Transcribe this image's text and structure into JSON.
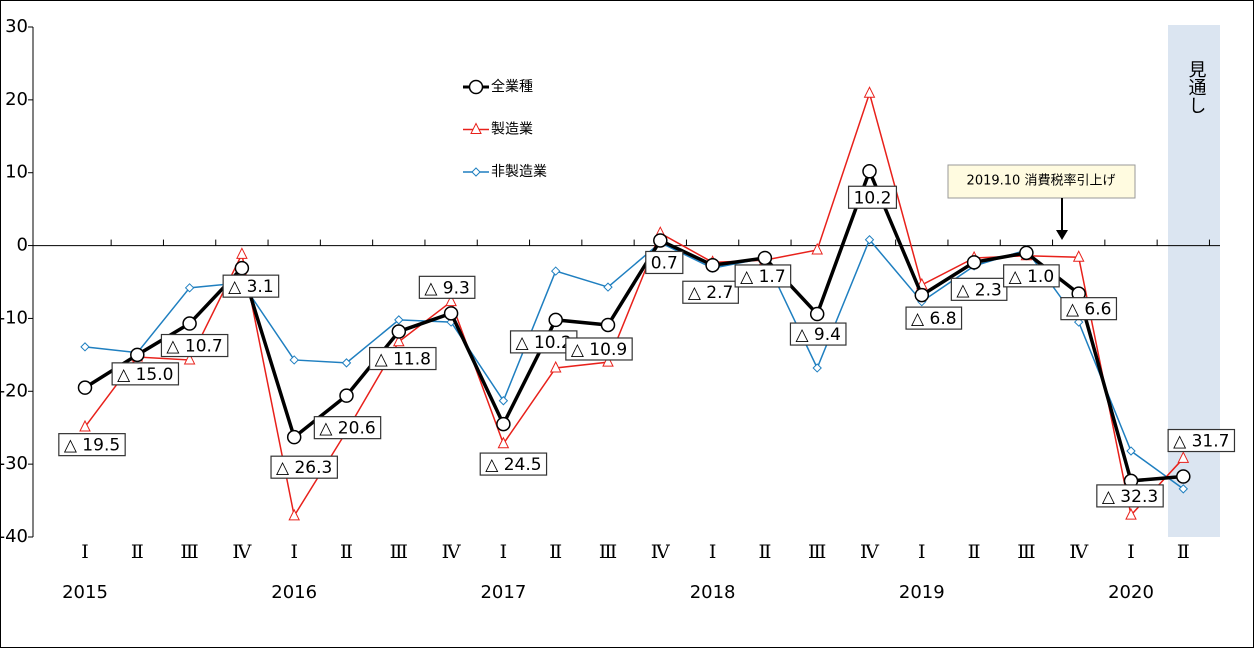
{
  "chart_data": {
    "type": "line",
    "categories": [
      "Ⅰ",
      "Ⅱ",
      "Ⅲ",
      "Ⅳ",
      "Ⅰ",
      "Ⅱ",
      "Ⅲ",
      "Ⅳ",
      "Ⅰ",
      "Ⅱ",
      "Ⅲ",
      "Ⅳ",
      "Ⅰ",
      "Ⅱ",
      "Ⅲ",
      "Ⅳ",
      "Ⅰ",
      "Ⅱ",
      "Ⅲ",
      "Ⅳ",
      "Ⅰ",
      "Ⅱ"
    ],
    "years": [
      "2015",
      null,
      null,
      null,
      "2016",
      null,
      null,
      null,
      "2017",
      null,
      null,
      null,
      "2018",
      null,
      null,
      null,
      "2019",
      null,
      null,
      null,
      "2020",
      null
    ],
    "series": [
      {
        "name": "全業種",
        "color": "#000000",
        "marker": "circle",
        "values": [
          -19.5,
          -15.0,
          -10.7,
          -3.1,
          -26.3,
          -20.6,
          -11.8,
          -9.3,
          -24.5,
          -10.2,
          -10.9,
          0.7,
          -2.7,
          -1.7,
          -9.4,
          10.2,
          -6.8,
          -2.3,
          -1.0,
          -6.6,
          -32.3,
          -31.7
        ],
        "value_labels": [
          "△ 19.5",
          "△ 15.0",
          "△ 10.7",
          "△ 3.1",
          "△ 26.3",
          "△ 20.6",
          "△ 11.8",
          "△ 9.3",
          "△ 24.5",
          "△ 10.2",
          "△ 10.9",
          "0.7",
          "△ 2.7",
          "△ 1.7",
          "△ 9.4",
          "10.2",
          "△ 6.8",
          "△ 2.3",
          "△ 1.0",
          "△ 6.6",
          "△ 32.3",
          "△ 31.7"
        ]
      },
      {
        "name": "製造業",
        "color": "#e8211b",
        "marker": "triangle",
        "values": [
          -24.9,
          -15.3,
          -15.7,
          -1.2,
          -37.1,
          -25.5,
          -13.2,
          -7.7,
          -27.2,
          -16.8,
          -16.0,
          1.7,
          -2.3,
          -2.0,
          -0.6,
          20.9,
          -5.4,
          -1.7,
          -1.4,
          -1.6,
          -37.0,
          -29.2
        ]
      },
      {
        "name": "非製造業",
        "color": "#1f7fc0",
        "marker": "diamond",
        "values": [
          -13.9,
          -14.7,
          -5.8,
          -5.1,
          -15.7,
          -16.1,
          -10.2,
          -10.5,
          -21.3,
          -3.5,
          -5.7,
          0.4,
          -3.1,
          -1.7,
          -16.8,
          0.8,
          -7.7,
          -2.8,
          -0.6,
          -10.5,
          -28.2,
          -33.4
        ]
      }
    ],
    "ylim": [
      -40,
      30
    ],
    "yticks": [
      -40,
      -30,
      -20,
      -10,
      0,
      10,
      20,
      30
    ],
    "annotation": "2019.10 消費税率引上げ",
    "forecast_label": "見通し"
  }
}
